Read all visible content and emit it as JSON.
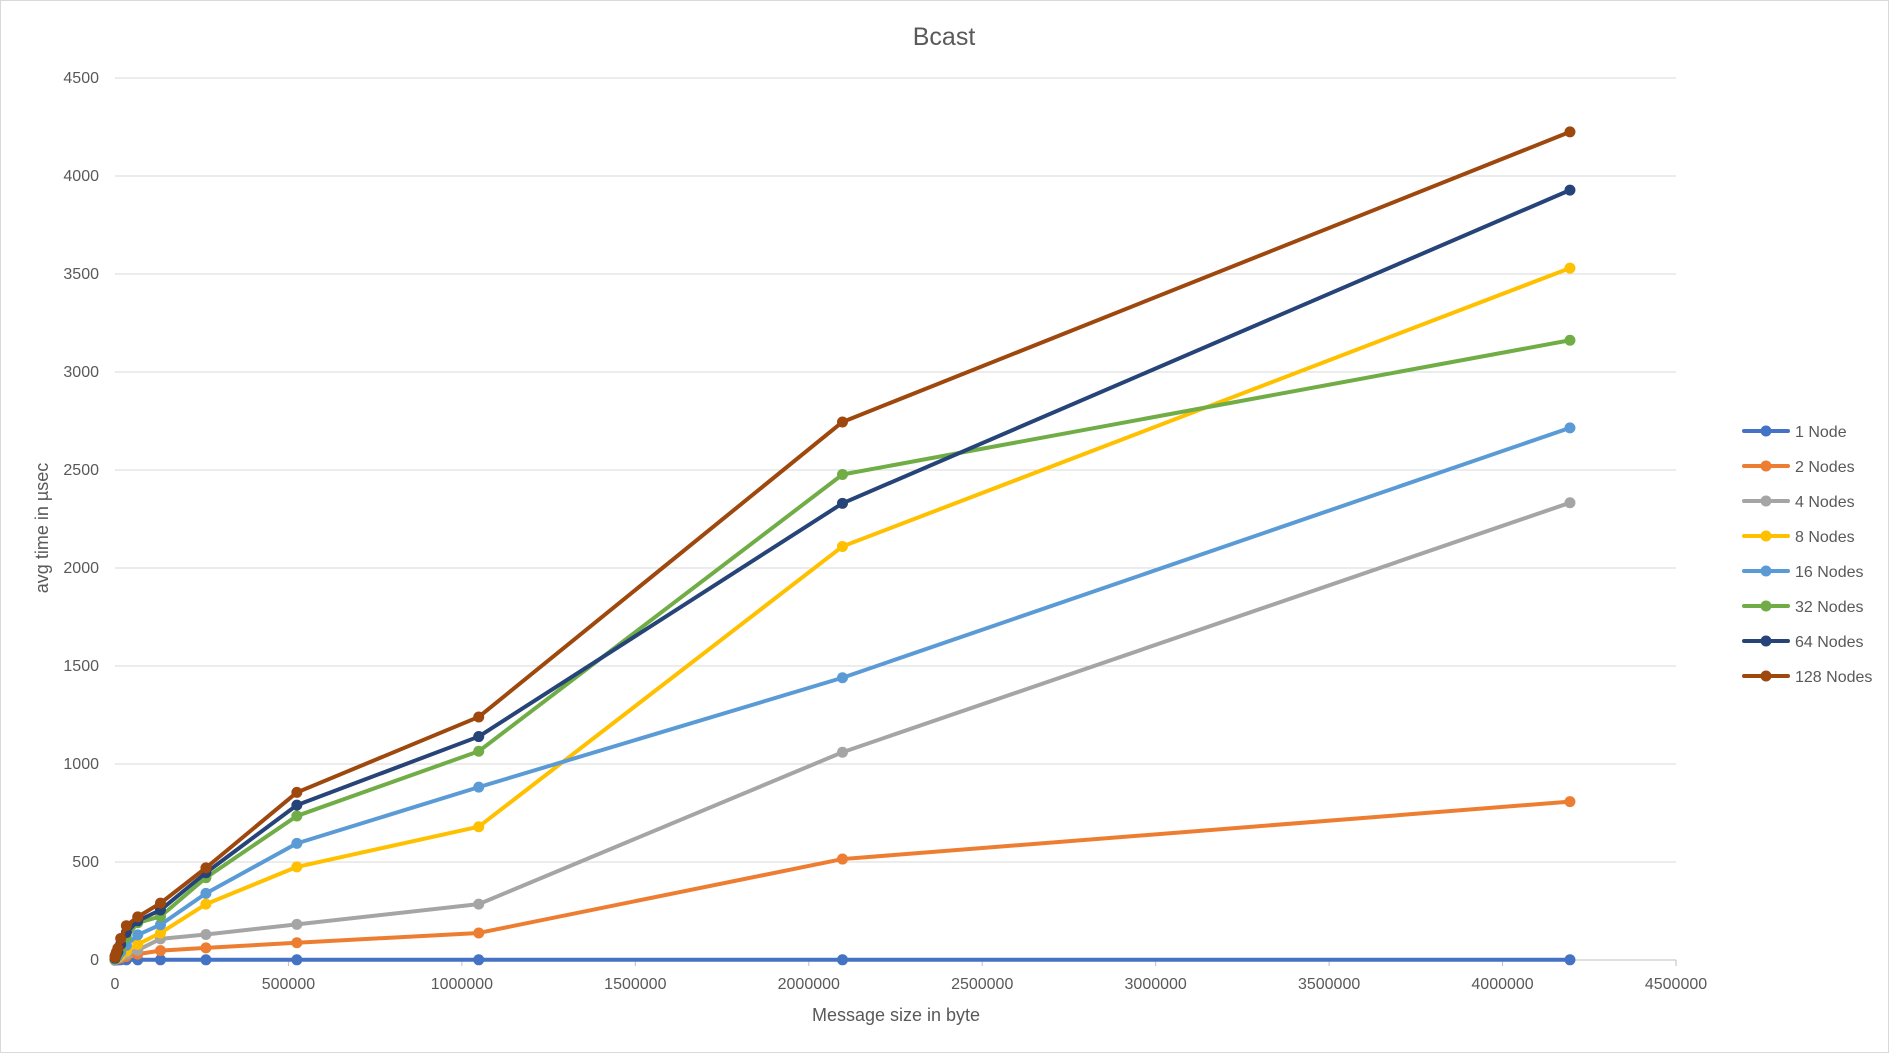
{
  "chart_data": {
    "type": "line",
    "title": "Bcast",
    "xlabel": "Message size in byte",
    "ylabel": "avg time in µsec",
    "xlim": [
      0,
      4500000
    ],
    "ylim": [
      0,
      4500
    ],
    "xticks": [
      0,
      500000,
      1000000,
      1500000,
      2000000,
      2500000,
      3000000,
      3500000,
      4000000,
      4500000
    ],
    "yticks": [
      0,
      500,
      1000,
      1500,
      2000,
      2500,
      3000,
      3500,
      4000,
      4500
    ],
    "grid": "horizontal",
    "legend_position": "right",
    "x": [
      1,
      2,
      4,
      8,
      16,
      32,
      64,
      128,
      256,
      512,
      1024,
      2048,
      4096,
      8192,
      16384,
      32768,
      65536,
      131072,
      262144,
      524288,
      1048576,
      2097152,
      4194304
    ],
    "series": [
      {
        "name": "1 Node",
        "color": "#4472C4",
        "values": [
          0.1,
          0.1,
          0.1,
          0.1,
          0.1,
          0.1,
          0.1,
          0.1,
          0.1,
          0.1,
          0.1,
          0.2,
          0.3,
          0.5,
          1,
          1,
          1,
          1,
          1,
          1,
          1,
          1,
          1
        ]
      },
      {
        "name": "2 Nodes",
        "color": "#ED7D31",
        "values": [
          2,
          2,
          2,
          2,
          2,
          2,
          2,
          3,
          3,
          3,
          4,
          4,
          5,
          7,
          10,
          18,
          30,
          48,
          62,
          88,
          138,
          515,
          808
        ]
      },
      {
        "name": "4 Nodes",
        "color": "#A5A5A5",
        "values": [
          3,
          3,
          3,
          3,
          3,
          3,
          3,
          4,
          4,
          4,
          5,
          6,
          8,
          10,
          18,
          30,
          50,
          108,
          130,
          182,
          285,
          1060,
          2333
        ]
      },
      {
        "name": "8 Nodes",
        "color": "#FFC000",
        "values": [
          5,
          5,
          5,
          5,
          5,
          5,
          5,
          6,
          6,
          7,
          8,
          9,
          11,
          15,
          25,
          45,
          80,
          138,
          285,
          475,
          680,
          2110,
          3530
        ]
      },
      {
        "name": "16 Nodes",
        "color": "#5B9BD5",
        "values": [
          6,
          6,
          6,
          6,
          6,
          6,
          7,
          7,
          8,
          9,
          10,
          12,
          16,
          22,
          40,
          75,
          128,
          180,
          340,
          595,
          882,
          1440,
          2715
        ]
      },
      {
        "name": "32 Nodes",
        "color": "#70AD47",
        "values": [
          8,
          8,
          8,
          8,
          8,
          8,
          9,
          9,
          10,
          11,
          13,
          16,
          22,
          32,
          60,
          115,
          190,
          222,
          420,
          735,
          1065,
          2477,
          3162
        ]
      },
      {
        "name": "64 Nodes",
        "color": "#264478",
        "values": [
          10,
          10,
          10,
          10,
          10,
          11,
          11,
          12,
          13,
          15,
          17,
          20,
          28,
          42,
          80,
          140,
          200,
          255,
          445,
          790,
          1140,
          2330,
          3928
        ]
      },
      {
        "name": "128 Nodes",
        "color": "#9E480E",
        "values": [
          14,
          14,
          14,
          14,
          15,
          15,
          16,
          17,
          18,
          20,
          23,
          28,
          40,
          60,
          110,
          175,
          220,
          290,
          470,
          855,
          1240,
          2745,
          4225
        ]
      }
    ]
  }
}
